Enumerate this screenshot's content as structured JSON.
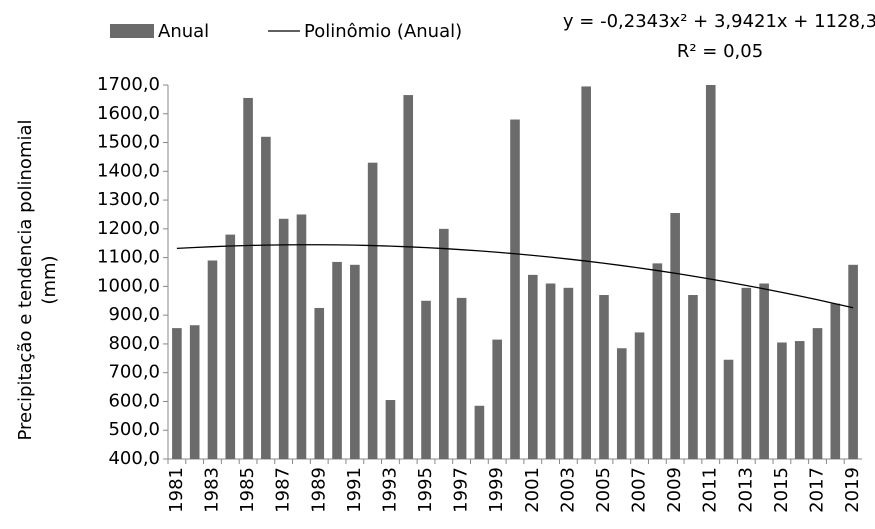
{
  "chart_data": {
    "type": "bar",
    "categories": [
      "1981",
      null,
      "1983",
      null,
      "1985",
      null,
      "1987",
      null,
      "1989",
      null,
      "1991",
      null,
      "1993",
      null,
      "1995",
      null,
      "1997",
      null,
      "1999",
      null,
      "2001",
      null,
      "2003",
      null,
      "2005",
      null,
      "2007",
      null,
      "2009",
      null,
      "2011",
      null,
      "2013",
      null,
      "2015",
      null,
      "2017",
      null,
      "2019"
    ],
    "series": [
      {
        "name": "Anual",
        "type": "bar",
        "color": "#6b6b6b",
        "values": [
          855,
          865,
          1090,
          1180,
          1655,
          1520,
          1235,
          1250,
          925,
          1085,
          1075,
          1430,
          605,
          1665,
          950,
          1200,
          960,
          585,
          815,
          1580,
          1040,
          1010,
          995,
          1695,
          970,
          785,
          840,
          1080,
          1255,
          970,
          1700,
          745,
          995,
          1010,
          805,
          810,
          855,
          940,
          1075
        ]
      },
      {
        "name": "Polinômio (Anual)",
        "type": "line",
        "color": "#000000",
        "values": [
          1132.0,
          1135.2,
          1138.0,
          1140.3,
          1142.2,
          1143.5,
          1144.4,
          1144.8,
          1144.8,
          1144.3,
          1143.3,
          1141.9,
          1140.0,
          1137.6,
          1134.7,
          1131.4,
          1127.6,
          1123.3,
          1118.6,
          1113.4,
          1107.8,
          1101.6,
          1095.0,
          1088.0,
          1080.4,
          1072.4,
          1063.9,
          1055.0,
          1045.6,
          1035.7,
          1025.3,
          1014.5,
          1003.2,
          991.5,
          979.3,
          966.6,
          953.4,
          939.8,
          925.7
        ]
      }
    ],
    "annotations": [
      "y = -0,2343x² + 3,9421x + 1128,3",
      "R² = 0,05"
    ],
    "y_label": [
      "Precipitação e tendencia polinomial",
      "(mm)"
    ],
    "ylim": [
      400,
      1700
    ],
    "yticks": [
      {
        "value": 400,
        "label": "400,0"
      },
      {
        "value": 500,
        "label": "500,0"
      },
      {
        "value": 600,
        "label": "600,0"
      },
      {
        "value": 700,
        "label": "700,0"
      },
      {
        "value": 800,
        "label": "800,0"
      },
      {
        "value": 900,
        "label": "900,0"
      },
      {
        "value": 1000,
        "label": "1000,0"
      },
      {
        "value": 1100,
        "label": "1100,0"
      },
      {
        "value": 1200,
        "label": "1200,0"
      },
      {
        "value": 1300,
        "label": "1300,0"
      },
      {
        "value": 1400,
        "label": "1400,0"
      },
      {
        "value": 1500,
        "label": "1500,0"
      },
      {
        "value": 1600,
        "label": "1600,0"
      },
      {
        "value": 1700,
        "label": "1700,0"
      }
    ],
    "grid": false
  }
}
